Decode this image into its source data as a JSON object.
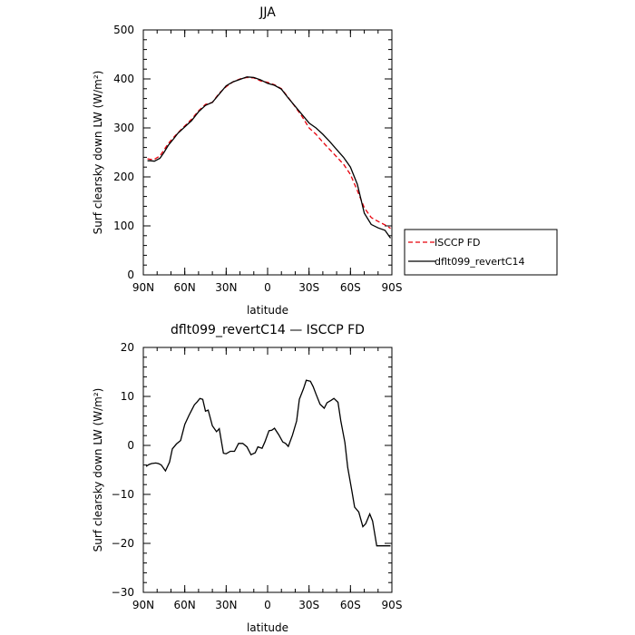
{
  "chart_data": [
    {
      "type": "line",
      "title": "JJA",
      "xlabel": "latitude",
      "ylabel": "Surf clearsky down LW (W/m²)",
      "xlim": [
        90,
        -90
      ],
      "ylim": [
        0,
        500
      ],
      "xticks": [
        {
          "value": 90,
          "label": "90N"
        },
        {
          "value": 60,
          "label": "60N"
        },
        {
          "value": 30,
          "label": "30N"
        },
        {
          "value": 0,
          "label": "0"
        },
        {
          "value": -30,
          "label": "30S"
        },
        {
          "value": -60,
          "label": "60S"
        },
        {
          "value": -90,
          "label": "90S"
        }
      ],
      "yticks": [
        0,
        100,
        200,
        300,
        400,
        500
      ],
      "legend_position": "right",
      "series": [
        {
          "name": "ISCCP FD",
          "style": "dashed",
          "color": "#e8000b",
          "x": [
            87,
            85,
            82,
            78,
            75,
            72,
            68,
            65,
            60,
            55,
            50,
            45,
            40,
            35,
            30,
            25,
            20,
            15,
            10,
            5,
            0,
            -5,
            -10,
            -15,
            -20,
            -25,
            -30,
            -35,
            -40,
            -45,
            -50,
            -55,
            -60,
            -65,
            -70,
            -75,
            -80,
            -85,
            -89
          ],
          "values": [
            237,
            236,
            236,
            243,
            255,
            268,
            281,
            290,
            304,
            318,
            335,
            348,
            352,
            371,
            384,
            394,
            400,
            403,
            402,
            396,
            393,
            388,
            380,
            362,
            343,
            323,
            300,
            287,
            271,
            256,
            241,
            226,
            205,
            172,
            137,
            117,
            109,
            102,
            95
          ]
        },
        {
          "name": "dflt099_revertC14",
          "style": "solid",
          "color": "#000000",
          "x": [
            87,
            85,
            82,
            78,
            75,
            72,
            68,
            65,
            60,
            55,
            50,
            45,
            40,
            35,
            30,
            25,
            20,
            15,
            10,
            5,
            0,
            -5,
            -10,
            -15,
            -20,
            -25,
            -30,
            -35,
            -40,
            -45,
            -50,
            -55,
            -60,
            -65,
            -70,
            -75,
            -80,
            -85,
            -89
          ],
          "values": [
            233,
            233,
            232,
            238,
            250,
            264,
            278,
            289,
            302,
            315,
            333,
            346,
            352,
            369,
            386,
            394,
            399,
            404,
            403,
            398,
            391,
            387,
            379,
            361,
            344,
            327,
            310,
            300,
            287,
            272,
            256,
            240,
            220,
            185,
            126,
            103,
            96,
            91,
            75
          ]
        }
      ]
    },
    {
      "type": "line",
      "title": "dflt099_revertC14 — ISCCP FD",
      "xlabel": "latitude",
      "ylabel": "Surf clearsky down LW (W/m²)",
      "xlim": [
        90,
        -90
      ],
      "ylim": [
        -30,
        20
      ],
      "xticks": [
        {
          "value": 90,
          "label": "90N"
        },
        {
          "value": 60,
          "label": "60N"
        },
        {
          "value": 30,
          "label": "30N"
        },
        {
          "value": 0,
          "label": "0"
        },
        {
          "value": -30,
          "label": "30S"
        },
        {
          "value": -60,
          "label": "60S"
        },
        {
          "value": -90,
          "label": "90S"
        }
      ],
      "yticks": [
        -30,
        -20,
        -10,
        0,
        10,
        20
      ],
      "series": [
        {
          "name": "",
          "style": "solid",
          "color": "#000000",
          "x": [
            88,
            86,
            84,
            81,
            79,
            77,
            74,
            71,
            69,
            66,
            63,
            60,
            57,
            55,
            53,
            51,
            49,
            47,
            45,
            43,
            40,
            37,
            35,
            32,
            30,
            27,
            24,
            21,
            18,
            15,
            12,
            9,
            7,
            4,
            2,
            -1,
            -3,
            -5,
            -8,
            -11,
            -13,
            -15,
            -18,
            -21,
            -23,
            -26,
            -28,
            -31,
            -33,
            -35,
            -38,
            -41,
            -43,
            -46,
            -48,
            -51,
            -53,
            -56,
            -58,
            -61,
            -63,
            -66,
            -69,
            -71,
            -74,
            -76,
            -79,
            -81,
            -84,
            -86,
            -89
          ],
          "values": [
            -4.3,
            -3.9,
            -3.7,
            -3.6,
            -3.7,
            -4.0,
            -5.2,
            -3.4,
            -0.7,
            0.3,
            1.0,
            4.3,
            6.1,
            7.2,
            8.3,
            8.9,
            9.6,
            9.4,
            7.0,
            7.2,
            4.0,
            2.8,
            3.4,
            -1.6,
            -1.7,
            -1.2,
            -1.2,
            0.4,
            0.4,
            -0.3,
            -1.9,
            -1.5,
            -0.3,
            -0.6,
            0.7,
            3.0,
            3.1,
            3.5,
            2.2,
            0.7,
            0.4,
            -0.2,
            2.1,
            5.0,
            9.4,
            11.6,
            13.3,
            13.1,
            12.0,
            10.5,
            8.4,
            7.6,
            8.7,
            9.2,
            9.6,
            8.8,
            5.0,
            0.6,
            -4.5,
            -9.3,
            -12.6,
            -13.6,
            -16.6,
            -16.0,
            -14.0,
            -15.4,
            -20.5,
            -20.5,
            -20.5,
            -20.5,
            -20.5
          ]
        }
      ]
    }
  ]
}
